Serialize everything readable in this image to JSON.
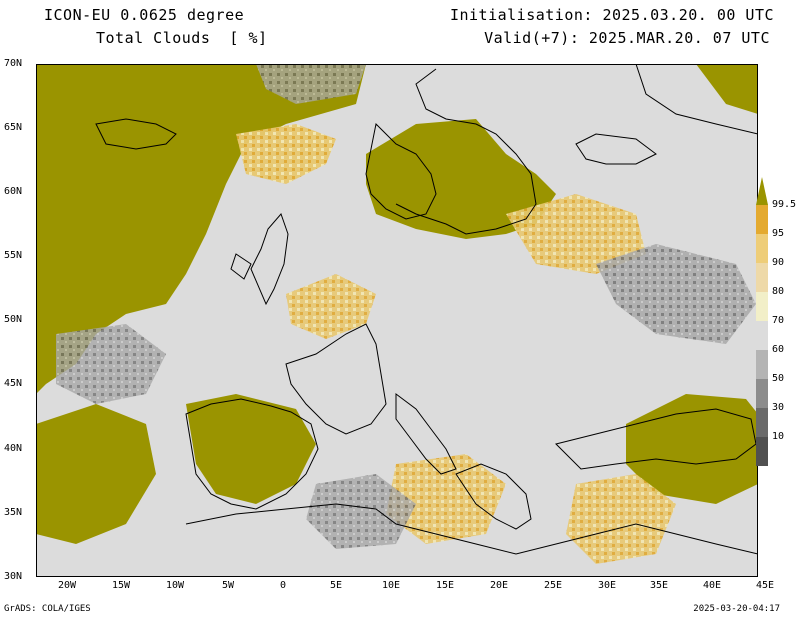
{
  "header": {
    "model": "ICON-EU 0.0625 degree",
    "variable": "Total Clouds  [ %]",
    "init": "Initialisation: 2025.03.20. 00 UTC",
    "valid": "Valid(+7): 2025.MAR.20. 07 UTC"
  },
  "footer": {
    "left": "GrADS: COLA/IGES",
    "right": "2025-03-20-04:17"
  },
  "map": {
    "lat_labels": [
      "70N",
      "65N",
      "60N",
      "55N",
      "50N",
      "45N",
      "40N",
      "35N",
      "30N"
    ],
    "lon_labels": [
      "20W",
      "15W",
      "10W",
      "5W",
      "0",
      "5E",
      "10E",
      "15E",
      "20E",
      "25E",
      "30E",
      "35E",
      "40E",
      "45E"
    ],
    "colors": {
      "clear": "#dcdcdc",
      "overcast": "#9a9400",
      "grey_dark": "#5a5a5a",
      "grey_mid": "#9c9c9c",
      "yellow": "#e8c870",
      "orange": "#e0a830",
      "coast": "#000000"
    }
  },
  "colorbar": {
    "labels": [
      "99.5",
      "95",
      "90",
      "80",
      "70",
      "60",
      "50",
      "30",
      "10"
    ],
    "colors": [
      "#9a9400",
      "#e4aa30",
      "#eecd78",
      "#eed9a8",
      "#f2efc8",
      "#dcdcdc",
      "#b4b4b4",
      "#8c8c8c",
      "#6a6a6a",
      "#505050"
    ]
  }
}
